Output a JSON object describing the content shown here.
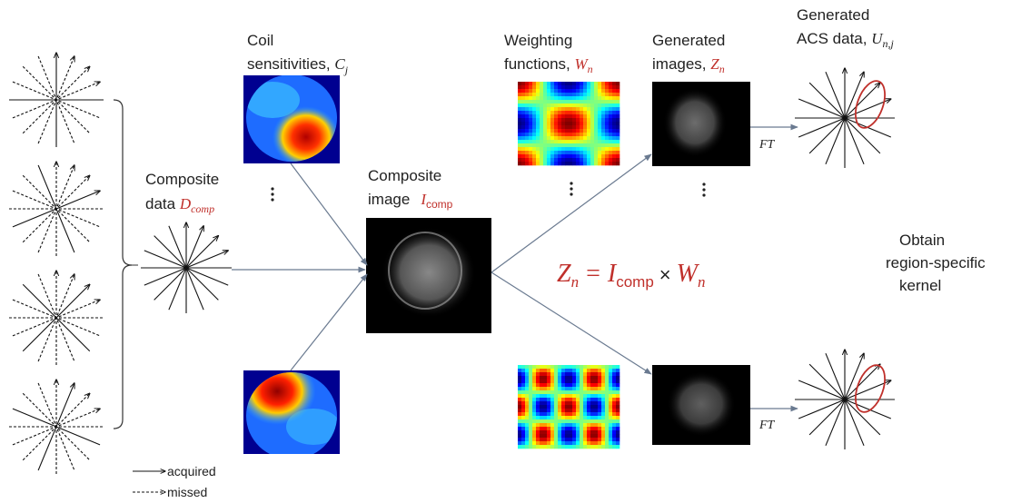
{
  "coil": {
    "line1": "Coil",
    "line2": "sensitivities,",
    "symbol": "C",
    "sub": "j"
  },
  "composite_data": {
    "line1": "Composite",
    "line2": "data",
    "symbol": "D",
    "sub": "comp"
  },
  "composite_image": {
    "line1": "Composite",
    "line2": "image",
    "symbol": "I",
    "sub": "comp"
  },
  "weighting": {
    "line1": "Weighting",
    "line2": "functions,",
    "symbol": "W",
    "sub": "n"
  },
  "generated_images": {
    "line1": "Generated",
    "line2": "images,",
    "symbol": "Z",
    "sub": "n"
  },
  "generated_acs": {
    "line1": "Generated",
    "line2": "ACS data,",
    "symbol": "U",
    "sub": "n,j"
  },
  "ft": [
    "FT",
    "FT"
  ],
  "equation": {
    "lhs": "Z",
    "lhs_sub": "n",
    "eq": "=",
    "a": "I",
    "a_sub": "comp",
    "times": "×",
    "b": "W",
    "b_sub": "n"
  },
  "obtain": [
    "Obtain",
    "region-specific",
    "kernel"
  ],
  "legend": {
    "acquired": "acquired",
    "missed": "missed"
  }
}
